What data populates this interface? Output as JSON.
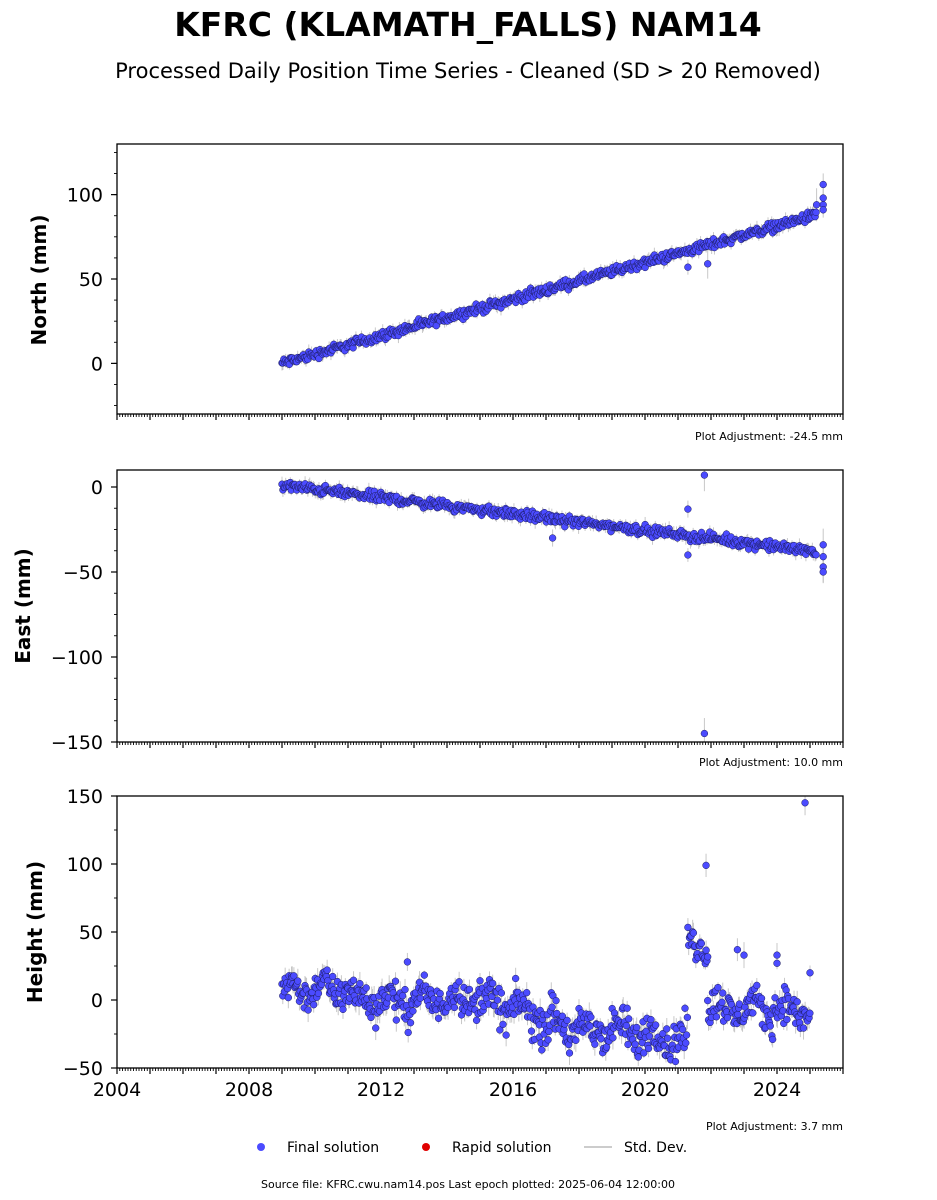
{
  "title": "KFRC (KLAMATH_FALLS) NAM14",
  "subtitle": "Processed Daily Position Time Series - Cleaned (SD > 20 Removed)",
  "legend": {
    "final": "Final solution",
    "rapid": "Rapid solution",
    "std": "Std. Dev."
  },
  "source_text": "Source file: KFRC.cwu.nam14.pos  Last epoch plotted: 2025-06-04 12:00:00",
  "colors": {
    "final": "#4b4bff",
    "rapid": "#e00000",
    "std": "#bbbbbb"
  },
  "chart_data": [
    {
      "type": "scatter",
      "ylabel": "North (mm)",
      "adjustment": "Plot Adjustment: -24.5 mm",
      "xlim": [
        2004,
        2026
      ],
      "ylim": [
        -30,
        130
      ],
      "yticks": [
        0,
        50,
        100
      ],
      "xtick_labels": false,
      "trend": {
        "x0": 2009.0,
        "y0": 0,
        "x1": 2025.2,
        "y1": 88,
        "jitter": 2.0
      },
      "outliers": [
        {
          "x": 2021.3,
          "y": 57
        },
        {
          "x": 2021.9,
          "y": 59
        },
        {
          "x": 2025.4,
          "y": 106
        },
        {
          "x": 2025.4,
          "y": 98
        },
        {
          "x": 2025.4,
          "y": 94
        },
        {
          "x": 2025.4,
          "y": 91
        },
        {
          "x": 2025.2,
          "y": 94
        }
      ]
    },
    {
      "type": "scatter",
      "ylabel": "East (mm)",
      "adjustment": "Plot Adjustment: 10.0 mm",
      "xlim": [
        2004,
        2026
      ],
      "ylim": [
        -150,
        10
      ],
      "yticks": [
        0,
        -50,
        -100,
        -150
      ],
      "xtick_labels": false,
      "trend": {
        "x0": 2009.0,
        "y0": 1,
        "x1": 2025.2,
        "y1": -38,
        "jitter": 2.0
      },
      "outliers": [
        {
          "x": 2021.8,
          "y": 7
        },
        {
          "x": 2021.3,
          "y": -13
        },
        {
          "x": 2021.3,
          "y": -40
        },
        {
          "x": 2021.8,
          "y": -145
        },
        {
          "x": 2017.2,
          "y": -30
        },
        {
          "x": 2025.4,
          "y": -34
        },
        {
          "x": 2025.4,
          "y": -41
        },
        {
          "x": 2025.4,
          "y": -47
        },
        {
          "x": 2025.4,
          "y": -50
        }
      ]
    },
    {
      "type": "scatter",
      "ylabel": "Height (mm)",
      "adjustment": "Plot Adjustment: 3.7 mm",
      "xlim": [
        2004,
        2026
      ],
      "ylim": [
        -50,
        150
      ],
      "yticks": [
        150,
        100,
        50,
        0,
        -50
      ],
      "xtick_labels": true,
      "xticks": [
        2004,
        2008,
        2012,
        2016,
        2020,
        2024
      ],
      "height_series": [
        {
          "x0": 2009.0,
          "x1": 2011.0,
          "y0": 8,
          "y1": 8,
          "jitter": 8
        },
        {
          "x0": 2011.0,
          "x1": 2013.0,
          "y0": 2,
          "y1": -2,
          "jitter": 9
        },
        {
          "x0": 2013.0,
          "x1": 2015.0,
          "y0": 0,
          "y1": 2,
          "jitter": 9
        },
        {
          "x0": 2015.0,
          "x1": 2016.8,
          "y0": 2,
          "y1": -12,
          "jitter": 10
        },
        {
          "x0": 2016.8,
          "x1": 2018.5,
          "y0": -15,
          "y1": -25,
          "jitter": 11
        },
        {
          "x0": 2018.5,
          "x1": 2021.3,
          "y0": -20,
          "y1": -30,
          "jitter": 10
        },
        {
          "x0": 2021.3,
          "x1": 2021.9,
          "y0": 42,
          "y1": 42,
          "jitter": 9
        },
        {
          "x0": 2021.9,
          "x1": 2025.0,
          "y0": -6,
          "y1": -8,
          "jitter": 9
        }
      ],
      "outliers": [
        {
          "x": 2021.85,
          "y": 99
        },
        {
          "x": 2024.85,
          "y": 145
        },
        {
          "x": 2012.8,
          "y": 28
        },
        {
          "x": 2022.8,
          "y": 37
        },
        {
          "x": 2023.0,
          "y": 33
        },
        {
          "x": 2024.0,
          "y": 33
        },
        {
          "x": 2024.0,
          "y": 27
        },
        {
          "x": 2025.0,
          "y": 20
        }
      ]
    }
  ]
}
